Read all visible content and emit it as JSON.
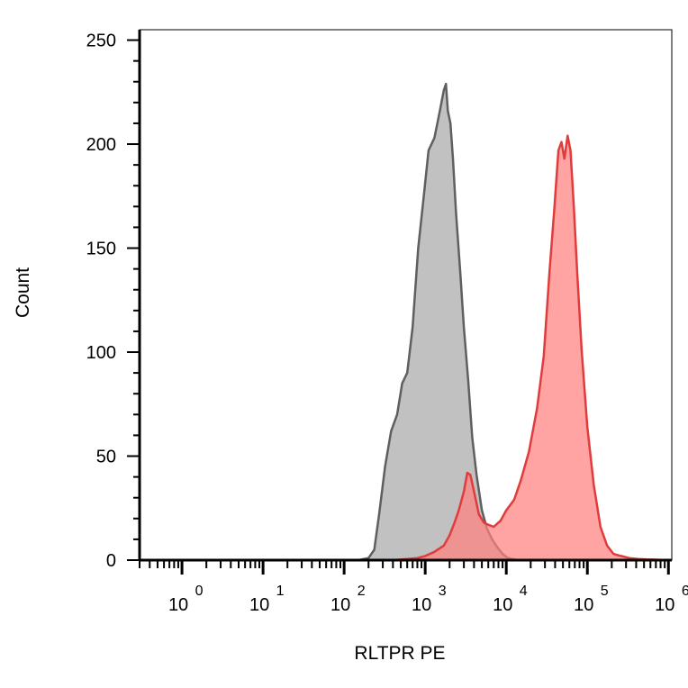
{
  "chart_data": {
    "type": "area",
    "title": "",
    "xlabel": "RLTPR PE",
    "ylabel": "Count",
    "xscale": "log",
    "xlim": [
      0.3,
      1100000
    ],
    "ylim": [
      0,
      255
    ],
    "grid": false,
    "legend": "none",
    "y_ticks": [
      0,
      50,
      100,
      150,
      200,
      250
    ],
    "x_ticks": [
      {
        "value": 1,
        "base": "10",
        "exp": "0"
      },
      {
        "value": 10,
        "base": "10",
        "exp": "1"
      },
      {
        "value": 100,
        "base": "10",
        "exp": "2"
      },
      {
        "value": 1000,
        "base": "10",
        "exp": "3"
      },
      {
        "value": 10000,
        "base": "10",
        "exp": "4"
      },
      {
        "value": 100000,
        "base": "10",
        "exp": "5"
      },
      {
        "value": 1000000,
        "base": "10",
        "exp": "6"
      }
    ],
    "series": [
      {
        "fill": "#a9a9a9",
        "stroke": "#5f5f5f",
        "x": [
          0.3,
          150,
          200,
          235,
          270,
          320,
          380,
          450,
          520,
          600,
          700,
          820,
          960,
          1100,
          1300,
          1500,
          1700,
          1800,
          1900,
          2050,
          2200,
          2400,
          2700,
          3000,
          3400,
          3800,
          4300,
          5000,
          5800,
          6700,
          7800,
          9000,
          10500,
          12000,
          14000,
          1100000
        ],
        "y": [
          0,
          0,
          1,
          5,
          22,
          45,
          62,
          70,
          85,
          90,
          112,
          150,
          175,
          197,
          203,
          215,
          226,
          229,
          216,
          210,
          193,
          167,
          139,
          112,
          86,
          59,
          41,
          24,
          15,
          10,
          6,
          3,
          1,
          0.5,
          0,
          0
        ]
      },
      {
        "fill": "#ff8080",
        "stroke": "#e03c3c",
        "x": [
          0.3,
          400,
          600,
          800,
          1000,
          1300,
          1700,
          2000,
          2300,
          2600,
          3000,
          3300,
          3600,
          4000,
          4600,
          5300,
          6000,
          7000,
          8500,
          10000,
          12500,
          15000,
          19000,
          24000,
          29000,
          34000,
          39000,
          44000,
          48000,
          52000,
          57000,
          62000,
          68000,
          75000,
          85000,
          100000,
          120000,
          145000,
          175000,
          210000,
          260000,
          330000,
          420000,
          550000,
          700000,
          1000000,
          1100000
        ],
        "y": [
          0,
          0,
          0.5,
          1,
          2,
          4,
          7,
          12,
          18,
          24,
          33,
          42,
          41,
          33,
          22,
          18,
          17,
          16,
          19,
          24,
          29,
          38,
          52,
          73,
          98,
          138,
          168,
          197,
          201,
          193,
          204,
          197,
          170,
          138,
          101,
          64,
          36,
          16,
          7,
          3,
          2,
          1,
          0.5,
          0.3,
          0.2,
          0,
          0
        ]
      }
    ]
  }
}
